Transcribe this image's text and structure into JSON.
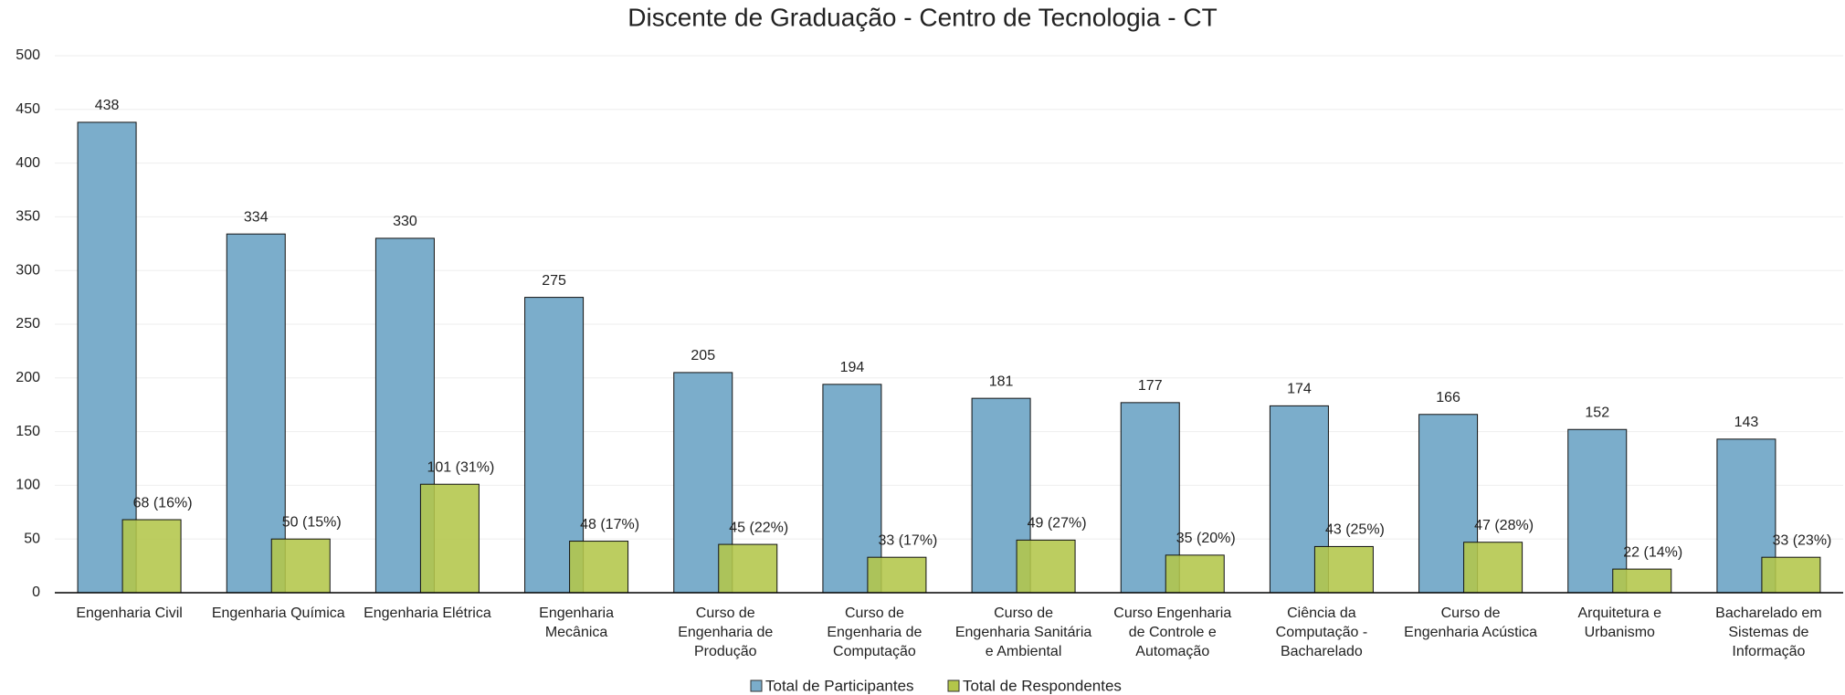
{
  "chart_data": {
    "type": "bar",
    "title": "Discente de Graduação - Centro de Tecnologia - CT",
    "categories": [
      "Engenharia Civil",
      "Engenharia Química",
      "Engenharia Elétrica",
      "Engenharia Mecânica",
      "Curso de Engenharia de Produção",
      "Curso de Engenharia de Computação",
      "Curso de Engenharia Sanitária e Ambiental",
      "Curso Engenharia de Controle e Automação",
      "Ciência da Computação - Bacharelado",
      "Curso de Engenharia Acústica",
      "Arquitetura e Urbanismo",
      "Bacharelado em Sistemas de Informação"
    ],
    "series": [
      {
        "name": "Total de Participantes",
        "color": "#7badcb",
        "values": [
          438,
          334,
          330,
          275,
          205,
          194,
          181,
          177,
          174,
          166,
          152,
          143
        ]
      },
      {
        "name": "Total de Respondentes",
        "color": "#b3c64a",
        "values": [
          68,
          50,
          101,
          48,
          45,
          33,
          49,
          35,
          43,
          47,
          22,
          33
        ],
        "value_labels": [
          "68 (16%)",
          "50 (15%)",
          "101 (31%)",
          "48 (17%)",
          "45 (22%)",
          "33 (17%)",
          "49 (27%)",
          "35 (20%)",
          "43 (25%)",
          "47 (28%)",
          "22 (14%)",
          "33 (23%)"
        ]
      }
    ],
    "ylim": [
      0,
      500
    ],
    "yticks": [
      0,
      50,
      100,
      150,
      200,
      250,
      300,
      350,
      400,
      450,
      500
    ],
    "grid": true,
    "legend": "bottom"
  }
}
